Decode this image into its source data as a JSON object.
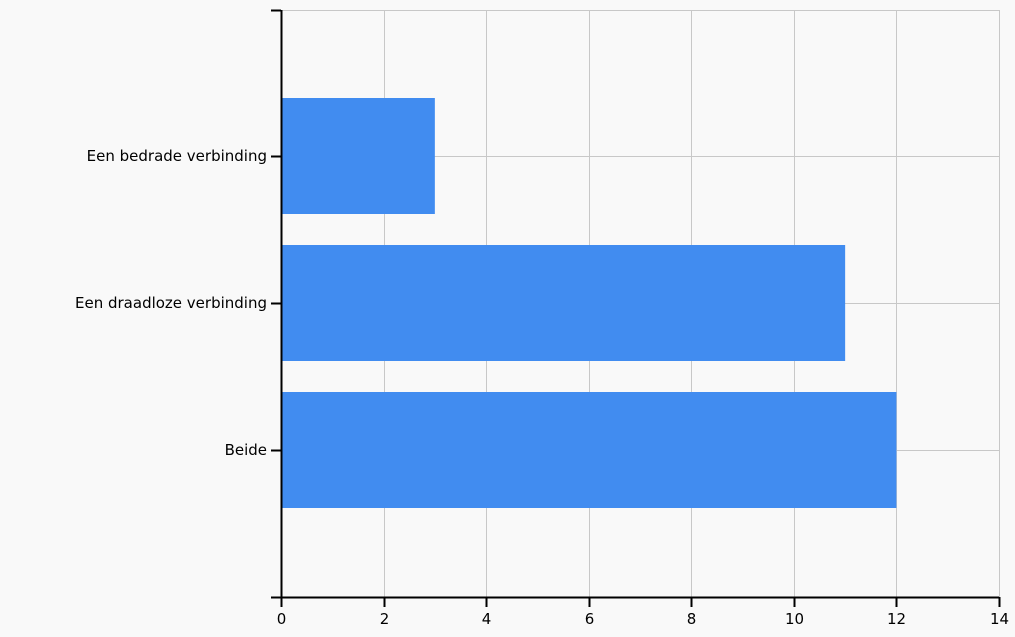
{
  "chart_data": {
    "type": "bar",
    "orientation": "horizontal",
    "title": "",
    "xlabel": "",
    "ylabel": "",
    "categories": [
      "Een bedrade verbinding",
      "Een draadloze verbinding",
      "Beide"
    ],
    "values": [
      3,
      11,
      12
    ],
    "xlim": [
      0,
      14
    ],
    "xticks": [
      0,
      2,
      4,
      6,
      8,
      10,
      12,
      14
    ],
    "grid": true,
    "legend": "none",
    "bar_color": "#418cf0",
    "grid_color": "#c8c8c8",
    "background_color": "#f9f9f9"
  }
}
